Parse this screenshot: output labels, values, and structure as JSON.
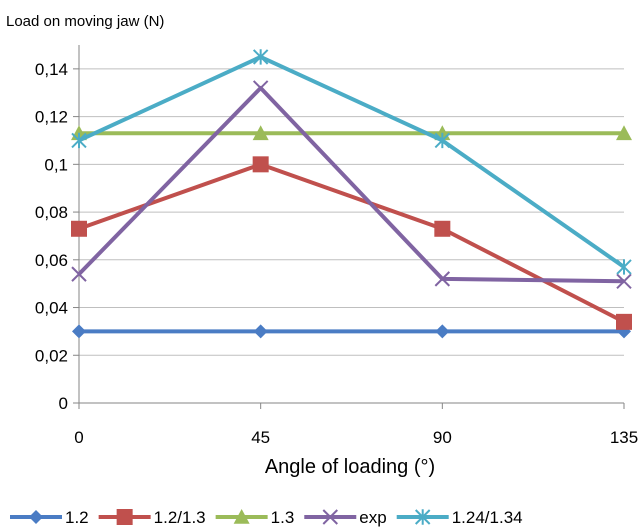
{
  "chart_data": {
    "type": "line",
    "title": "",
    "ylabel": "Load on moving jaw (N)",
    "xlabel": "Angle of loading (°)",
    "x": [
      0,
      45,
      90,
      135
    ],
    "ylim": [
      0,
      0.14
    ],
    "y_ticks": [
      "0",
      "0,02",
      "0,04",
      "0,06",
      "0,08",
      "0,1",
      "0,12",
      "0,14"
    ],
    "grid": "horizontal",
    "legend_position": "bottom",
    "series": [
      {
        "name": "1.2",
        "values": [
          0.03,
          0.03,
          0.03,
          0.03
        ],
        "color": "#4a7cc4",
        "marker": "diamond"
      },
      {
        "name": "1.2/1.3",
        "values": [
          0.073,
          0.1,
          0.073,
          0.034
        ],
        "color": "#c0504d",
        "marker": "square"
      },
      {
        "name": "1.3",
        "values": [
          0.113,
          0.113,
          0.113,
          0.113
        ],
        "color": "#9bbb59",
        "marker": "triangle"
      },
      {
        "name": "exp",
        "values": [
          0.054,
          0.132,
          0.052,
          0.051
        ],
        "color": "#8064a2",
        "marker": "x"
      },
      {
        "name": "1.24/1.34",
        "values": [
          0.11,
          0.145,
          0.11,
          0.057
        ],
        "color": "#4bacc6",
        "marker": "star"
      }
    ]
  }
}
